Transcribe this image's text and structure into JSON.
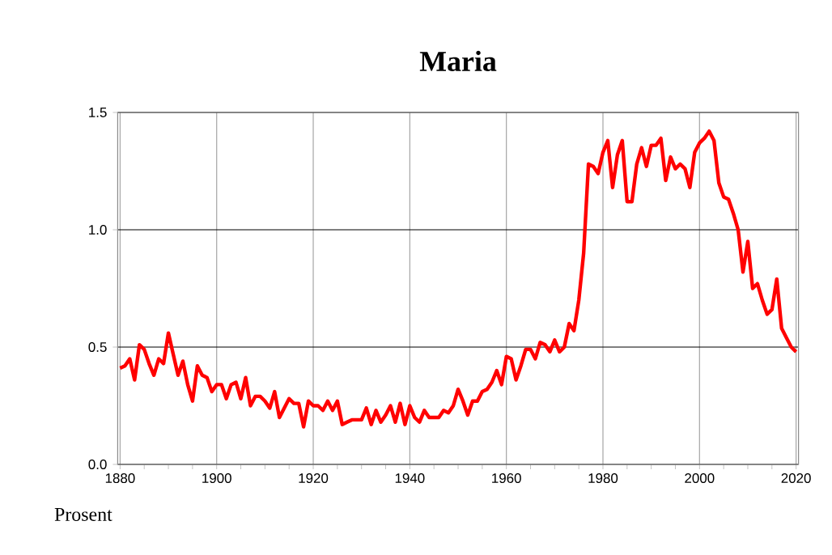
{
  "chart_data": {
    "type": "line",
    "title": "Maria",
    "ylabel": "Prosent",
    "color": "#ff0000",
    "grid": true,
    "marker": "none",
    "line_style": "solid",
    "x": [
      1880,
      1881,
      1882,
      1883,
      1884,
      1885,
      1886,
      1887,
      1888,
      1889,
      1890,
      1891,
      1892,
      1893,
      1894,
      1895,
      1896,
      1897,
      1898,
      1899,
      1900,
      1901,
      1902,
      1903,
      1904,
      1905,
      1906,
      1907,
      1908,
      1909,
      1910,
      1911,
      1912,
      1913,
      1914,
      1915,
      1916,
      1917,
      1918,
      1919,
      1920,
      1921,
      1922,
      1923,
      1924,
      1925,
      1926,
      1927,
      1928,
      1929,
      1930,
      1931,
      1932,
      1933,
      1934,
      1935,
      1936,
      1937,
      1938,
      1939,
      1940,
      1941,
      1942,
      1943,
      1944,
      1945,
      1946,
      1947,
      1948,
      1949,
      1950,
      1951,
      1952,
      1953,
      1954,
      1955,
      1956,
      1957,
      1958,
      1959,
      1960,
      1961,
      1962,
      1963,
      1964,
      1965,
      1966,
      1967,
      1968,
      1969,
      1970,
      1971,
      1972,
      1973,
      1974,
      1975,
      1976,
      1977,
      1978,
      1979,
      1980,
      1981,
      1982,
      1983,
      1984,
      1985,
      1986,
      1987,
      1988,
      1989,
      1990,
      1991,
      1992,
      1993,
      1994,
      1995,
      1996,
      1997,
      1998,
      1999,
      2000,
      2001,
      2002,
      2003,
      2004,
      2005,
      2006,
      2007,
      2008,
      2009,
      2010,
      2011,
      2012,
      2013,
      2014,
      2015,
      2016,
      2017,
      2018,
      2019,
      2020
    ],
    "values": [
      0.41,
      0.42,
      0.45,
      0.36,
      0.51,
      0.49,
      0.43,
      0.38,
      0.45,
      0.43,
      0.56,
      0.47,
      0.38,
      0.44,
      0.34,
      0.27,
      0.42,
      0.38,
      0.37,
      0.31,
      0.34,
      0.34,
      0.28,
      0.34,
      0.35,
      0.28,
      0.37,
      0.25,
      0.29,
      0.29,
      0.27,
      0.24,
      0.31,
      0.2,
      0.24,
      0.28,
      0.26,
      0.26,
      0.16,
      0.27,
      0.25,
      0.25,
      0.23,
      0.27,
      0.23,
      0.27,
      0.17,
      0.18,
      0.19,
      0.19,
      0.19,
      0.24,
      0.17,
      0.23,
      0.18,
      0.21,
      0.25,
      0.18,
      0.26,
      0.17,
      0.25,
      0.2,
      0.18,
      0.23,
      0.2,
      0.2,
      0.2,
      0.23,
      0.22,
      0.25,
      0.32,
      0.27,
      0.21,
      0.27,
      0.27,
      0.31,
      0.32,
      0.35,
      0.4,
      0.34,
      0.46,
      0.45,
      0.36,
      0.42,
      0.49,
      0.49,
      0.45,
      0.52,
      0.51,
      0.48,
      0.53,
      0.48,
      0.5,
      0.6,
      0.57,
      0.7,
      0.9,
      1.28,
      1.27,
      1.24,
      1.33,
      1.38,
      1.18,
      1.32,
      1.38,
      1.12,
      1.12,
      1.28,
      1.35,
      1.27,
      1.36,
      1.36,
      1.39,
      1.21,
      1.31,
      1.26,
      1.28,
      1.26,
      1.18,
      1.33,
      1.37,
      1.39,
      1.42,
      1.38,
      1.2,
      1.14,
      1.13,
      1.07,
      1.0,
      0.82,
      0.95,
      0.75,
      0.77,
      0.7,
      0.64,
      0.66,
      0.79,
      0.58,
      0.54,
      0.5,
      0.48
    ],
    "xlim": [
      1879.5,
      2020.5
    ],
    "ylim": [
      0,
      1.5
    ],
    "xticks": [
      1880,
      1900,
      1920,
      1940,
      1960,
      1980,
      2000,
      2020
    ],
    "yticks": [
      {
        "value": 0,
        "label": "0.0"
      },
      {
        "value": 0.5,
        "label": "0.5"
      },
      {
        "value": 1,
        "label": "1.0"
      },
      {
        "value": 1.5,
        "label": "1.5"
      }
    ]
  }
}
